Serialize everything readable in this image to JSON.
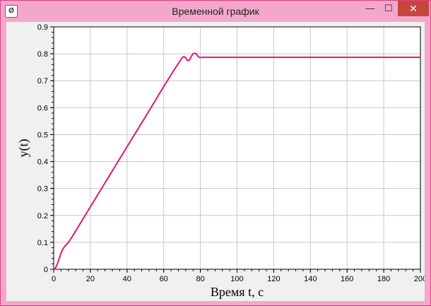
{
  "window": {
    "title": "Временной график",
    "icon": "app-logo-icon",
    "icon_text": "Ø"
  },
  "controls": {
    "minimize": "—",
    "maximize": "☐",
    "close": "✕"
  },
  "colors": {
    "line": "#e0157a",
    "frame": "#f3a8cb",
    "grid": "#c8c8c8"
  },
  "chart_data": {
    "type": "line",
    "title": "",
    "xlabel": "Время t, с",
    "ylabel": "y(t)",
    "xlim": [
      0,
      200
    ],
    "ylim": [
      0,
      0.9
    ],
    "grid": true,
    "x_ticks": [
      "0",
      "20",
      "40",
      "60",
      "80",
      "100",
      "120",
      "140",
      "160",
      "180",
      "200"
    ],
    "y_ticks": [
      "0",
      "0.1",
      "0.2",
      "0.3",
      "0.4",
      "0.5",
      "0.6",
      "0.7",
      "0.8",
      "0.9"
    ],
    "series": [
      {
        "name": "",
        "color": "#e0157a",
        "x": [
          0,
          1,
          2,
          3,
          4,
          5,
          6,
          8,
          10,
          20,
          30,
          40,
          50,
          60,
          65,
          70,
          71,
          72,
          73,
          74,
          75,
          76,
          77,
          78,
          79,
          80,
          81,
          82,
          90,
          100,
          150,
          200
        ],
        "y": [
          0,
          0.005,
          0.02,
          0.04,
          0.06,
          0.075,
          0.085,
          0.1,
          0.12,
          0.232,
          0.343,
          0.455,
          0.566,
          0.678,
          0.733,
          0.785,
          0.79,
          0.785,
          0.775,
          0.776,
          0.79,
          0.8,
          0.802,
          0.798,
          0.788,
          0.786,
          0.787,
          0.787,
          0.787,
          0.787,
          0.787,
          0.787
        ]
      }
    ]
  }
}
